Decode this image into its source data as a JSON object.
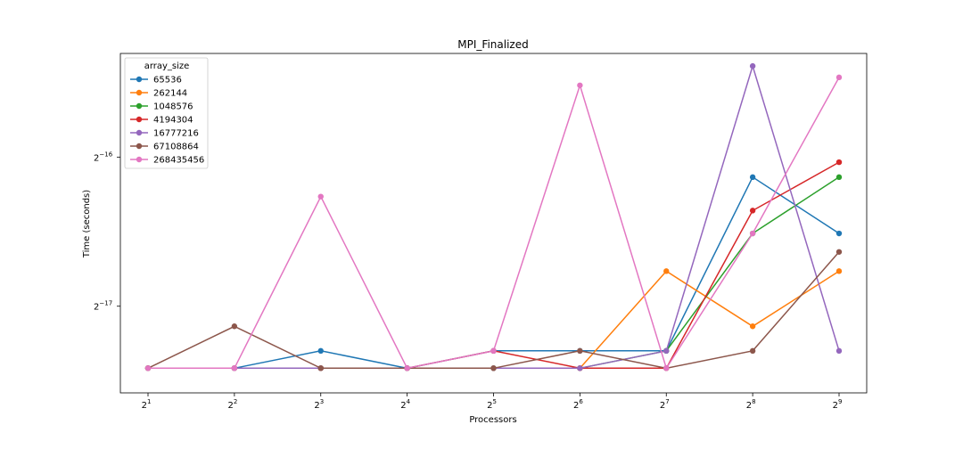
{
  "chart_data": {
    "type": "line",
    "title": "MPI_Finalized",
    "xlabel": "Processors",
    "ylabel": "Time (seconds)",
    "xscale": "log2",
    "yscale": "log2",
    "x": [
      2,
      4,
      8,
      16,
      32,
      64,
      128,
      256,
      512
    ],
    "x_ticks": [
      {
        "base": "2",
        "exp": "1"
      },
      {
        "base": "2",
        "exp": "2"
      },
      {
        "base": "2",
        "exp": "3"
      },
      {
        "base": "2",
        "exp": "4"
      },
      {
        "base": "2",
        "exp": "5"
      },
      {
        "base": "2",
        "exp": "6"
      },
      {
        "base": "2",
        "exp": "7"
      },
      {
        "base": "2",
        "exp": "8"
      },
      {
        "base": "2",
        "exp": "9"
      }
    ],
    "y_ticks": [
      {
        "value": 1.52588e-05,
        "base": "2",
        "exp": "−16"
      },
      {
        "value": 7.6294e-06,
        "base": "2",
        "exp": "−17"
      }
    ],
    "ylim": [
      5.1e-06,
      2.47e-05
    ],
    "legend": {
      "title": "array_size",
      "placement": "upper-left"
    },
    "grid": false,
    "series": [
      {
        "name": "65536",
        "color": "#1f77b4",
        "values": [
          5.72e-06,
          5.72e-06,
          6.2e-06,
          5.72e-06,
          6.2e-06,
          6.2e-06,
          6.2e-06,
          1.39e-05,
          1.07e-05
        ]
      },
      {
        "name": "262144",
        "color": "#ff7f0e",
        "values": [
          5.72e-06,
          5.72e-06,
          5.72e-06,
          5.72e-06,
          5.72e-06,
          5.72e-06,
          8.98e-06,
          6.95e-06,
          8.98e-06
        ]
      },
      {
        "name": "1048576",
        "color": "#2ca02c",
        "values": [
          5.72e-06,
          5.72e-06,
          5.72e-06,
          5.72e-06,
          5.72e-06,
          5.72e-06,
          6.2e-06,
          1.07e-05,
          1.39e-05
        ]
      },
      {
        "name": "4194304",
        "color": "#d62728",
        "values": [
          5.72e-06,
          5.72e-06,
          5.72e-06,
          5.72e-06,
          6.2e-06,
          5.72e-06,
          5.72e-06,
          1.19e-05,
          1.49e-05
        ]
      },
      {
        "name": "16777216",
        "color": "#9467bd",
        "values": [
          5.72e-06,
          5.72e-06,
          5.72e-06,
          5.72e-06,
          5.72e-06,
          5.72e-06,
          6.2e-06,
          2.33e-05,
          6.2e-06
        ]
      },
      {
        "name": "67108864",
        "color": "#8c564b",
        "values": [
          5.72e-06,
          6.95e-06,
          5.72e-06,
          5.72e-06,
          5.72e-06,
          6.2e-06,
          5.72e-06,
          6.2e-06,
          9.82e-06
        ]
      },
      {
        "name": "268435456",
        "color": "#e377c2",
        "values": [
          5.72e-06,
          5.72e-06,
          1.27e-05,
          5.72e-06,
          6.2e-06,
          2.13e-05,
          5.72e-06,
          1.07e-05,
          2.21e-05
        ]
      }
    ]
  }
}
